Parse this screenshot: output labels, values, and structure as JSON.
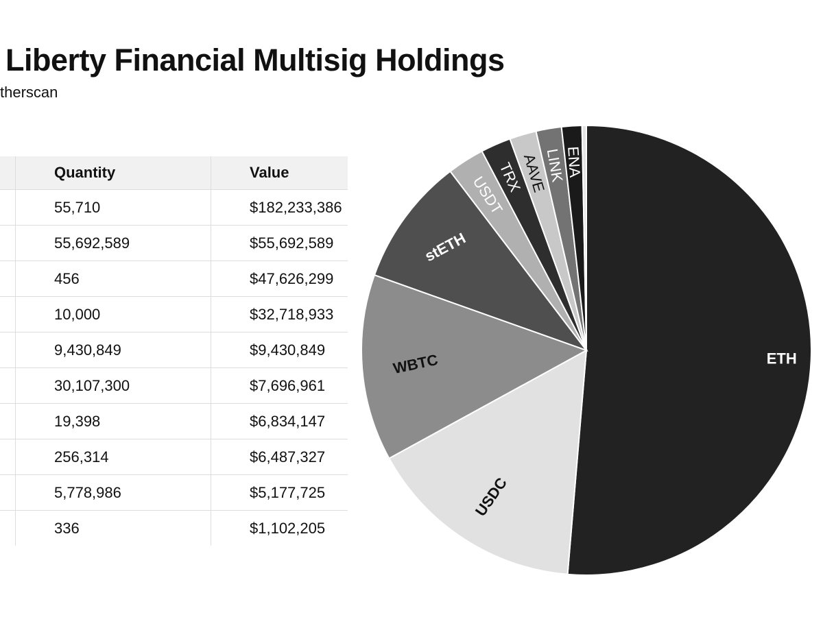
{
  "title": "Liberty Financial Multisig Holdings",
  "subtitle": "therscan",
  "table": {
    "columns": [
      "",
      "Quantity",
      "Value"
    ],
    "rows": [
      {
        "quantity": "55,710",
        "value": "$182,233,386"
      },
      {
        "quantity": "55,692,589",
        "value": "$55,692,589"
      },
      {
        "quantity": "456",
        "value": "$47,626,299"
      },
      {
        "quantity": "10,000",
        "value": "$32,718,933"
      },
      {
        "quantity": "9,430,849",
        "value": "$9,430,849"
      },
      {
        "quantity": "30,107,300",
        "value": "$7,696,961"
      },
      {
        "quantity": "19,398",
        "value": "$6,834,147"
      },
      {
        "quantity": "256,314",
        "value": "$6,487,327"
      },
      {
        "quantity": "5,778,986",
        "value": "$5,177,725"
      },
      {
        "quantity": "336",
        "value": "$1,102,205"
      }
    ]
  },
  "chart_data": {
    "type": "pie",
    "title": "Liberty Financial Multisig Holdings",
    "start": "top, clockwise",
    "slices": [
      {
        "label": "ETH",
        "value": 182233386,
        "color": "#222222",
        "text_color": "#ffffff"
      },
      {
        "label": "USDC",
        "value": 55692589,
        "color": "#e1e1e1",
        "text_color": "#111111"
      },
      {
        "label": "WBTC",
        "value": 47626299,
        "color": "#8c8c8c",
        "text_color": "#111111"
      },
      {
        "label": "stETH",
        "value": 32718933,
        "color": "#4f4f4f",
        "text_color": "#ffffff"
      },
      {
        "label": "USDT",
        "value": 9430849,
        "color": "#b0b0b0",
        "text_color": "#ffffff"
      },
      {
        "label": "TRX",
        "value": 7696961,
        "color": "#2e2e2e",
        "text_color": "#ffffff"
      },
      {
        "label": "AAVE",
        "value": 6834147,
        "color": "#c8c8c8",
        "text_color": "#111111"
      },
      {
        "label": "LINK",
        "value": 6487327,
        "color": "#737373",
        "text_color": "#ffffff"
      },
      {
        "label": "ENA",
        "value": 5177725,
        "color": "#1a1a1a",
        "text_color": "#ffffff"
      },
      {
        "label": "",
        "value": 1102205,
        "color": "#e4e4e4",
        "text_color": "#111111"
      }
    ]
  }
}
